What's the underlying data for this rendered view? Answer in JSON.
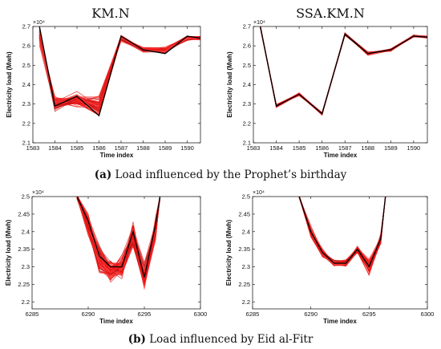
{
  "chart_data": [
    {
      "type": "line",
      "title": "KM.N",
      "xlabel": "Time index",
      "ylabel": "Electricity load (Mwh)",
      "y_exponent": "×10⁴",
      "xlim": [
        1583,
        1590.6
      ],
      "ylim": [
        2.1,
        2.7
      ],
      "xticks": [
        1583,
        1584,
        1585,
        1586,
        1587,
        1588,
        1589,
        1590
      ],
      "yticks": [
        2.1,
        2.2,
        2.3,
        2.4,
        2.5,
        2.6,
        2.7
      ],
      "x": [
        1583.3,
        1584,
        1585,
        1586,
        1587,
        1588,
        1589,
        1590,
        1590.6
      ],
      "series": [
        {
          "values": [
            2.7,
            2.29,
            2.34,
            2.24,
            2.65,
            2.58,
            2.56,
            2.65,
            2.64
          ],
          "color": "#000000"
        }
      ],
      "ensemble": {
        "count": 70,
        "color": "#ee1111",
        "center": [
          2.66,
          2.3,
          2.32,
          2.29,
          2.64,
          2.58,
          2.58,
          2.64,
          2.64
        ],
        "spread": [
          0.06,
          0.05,
          0.05,
          0.07,
          0.02,
          0.015,
          0.02,
          0.015,
          0.015
        ]
      },
      "grid": false
    },
    {
      "type": "line",
      "title": "SSA.KM.N",
      "xlabel": "Time index",
      "ylabel": "Electricity load (Mwh)",
      "y_exponent": "×10⁴",
      "xlim": [
        1583,
        1590.6
      ],
      "ylim": [
        2.1,
        2.7
      ],
      "xticks": [
        1583,
        1584,
        1585,
        1586,
        1587,
        1588,
        1589,
        1590
      ],
      "yticks": [
        2.1,
        2.2,
        2.3,
        2.4,
        2.5,
        2.6,
        2.7
      ],
      "x": [
        1583.3,
        1584,
        1585,
        1586,
        1587,
        1588,
        1589,
        1590,
        1590.6
      ],
      "series": [
        {
          "values": [
            2.7,
            2.29,
            2.35,
            2.25,
            2.66,
            2.56,
            2.58,
            2.65,
            2.645
          ],
          "color": "#000000"
        }
      ],
      "ensemble": {
        "count": 60,
        "color": "#ee1111",
        "center": [
          2.7,
          2.29,
          2.35,
          2.25,
          2.66,
          2.56,
          2.58,
          2.65,
          2.645
        ],
        "spread": [
          0.01,
          0.012,
          0.01,
          0.01,
          0.01,
          0.012,
          0.01,
          0.008,
          0.008
        ]
      },
      "grid": false
    },
    {
      "type": "line",
      "title": "",
      "xlabel": "Time index",
      "ylabel": "Electricity load (Mwh)",
      "y_exponent": "×10⁴",
      "xlim": [
        6285,
        6300
      ],
      "ylim": [
        2.18,
        2.5
      ],
      "xticks": [
        6285,
        6290,
        6295,
        6300
      ],
      "yticks": [
        2.2,
        2.25,
        2.3,
        2.35,
        2.4,
        2.45,
        2.5
      ],
      "x": [
        6289,
        6290,
        6291,
        6292,
        6293,
        6294,
        6295,
        6296,
        6296.4
      ],
      "series": [
        {
          "values": [
            2.5,
            2.43,
            2.33,
            2.3,
            2.3,
            2.4,
            2.27,
            2.42,
            2.5
          ],
          "color": "#000000"
        }
      ],
      "ensemble": {
        "count": 90,
        "color": "#ee1111",
        "center": [
          2.5,
          2.42,
          2.32,
          2.29,
          2.3,
          2.39,
          2.27,
          2.41,
          2.5
        ],
        "spread": [
          0.01,
          0.04,
          0.05,
          0.04,
          0.04,
          0.05,
          0.05,
          0.04,
          0.01
        ]
      },
      "grid": false
    },
    {
      "type": "line",
      "title": "",
      "xlabel": "Time index",
      "ylabel": "Electricity load (Mwh)",
      "y_exponent": "×10⁴",
      "xlim": [
        6285,
        6300
      ],
      "ylim": [
        2.18,
        2.5
      ],
      "xticks": [
        6285,
        6290,
        6295,
        6300
      ],
      "yticks": [
        2.2,
        2.25,
        2.3,
        2.35,
        2.4,
        2.45,
        2.5
      ],
      "x": [
        6289,
        6290,
        6291,
        6292,
        6293,
        6294,
        6295,
        6296,
        6296.4
      ],
      "series": [
        {
          "values": [
            2.5,
            2.4,
            2.34,
            2.31,
            2.31,
            2.35,
            2.3,
            2.38,
            2.5
          ],
          "color": "#000000"
        }
      ],
      "ensemble": {
        "count": 70,
        "color": "#ee1111",
        "center": [
          2.5,
          2.4,
          2.34,
          2.31,
          2.31,
          2.35,
          2.3,
          2.38,
          2.5
        ],
        "spread": [
          0.005,
          0.02,
          0.015,
          0.012,
          0.012,
          0.015,
          0.03,
          0.02,
          0.005
        ]
      },
      "grid": false
    }
  ],
  "captions": {
    "a_label": "(a)",
    "a_text": " Load influenced by the Prophet’s birthday",
    "b_label": "(b)",
    "b_text": " Load influenced by Eid al-Fitr"
  }
}
